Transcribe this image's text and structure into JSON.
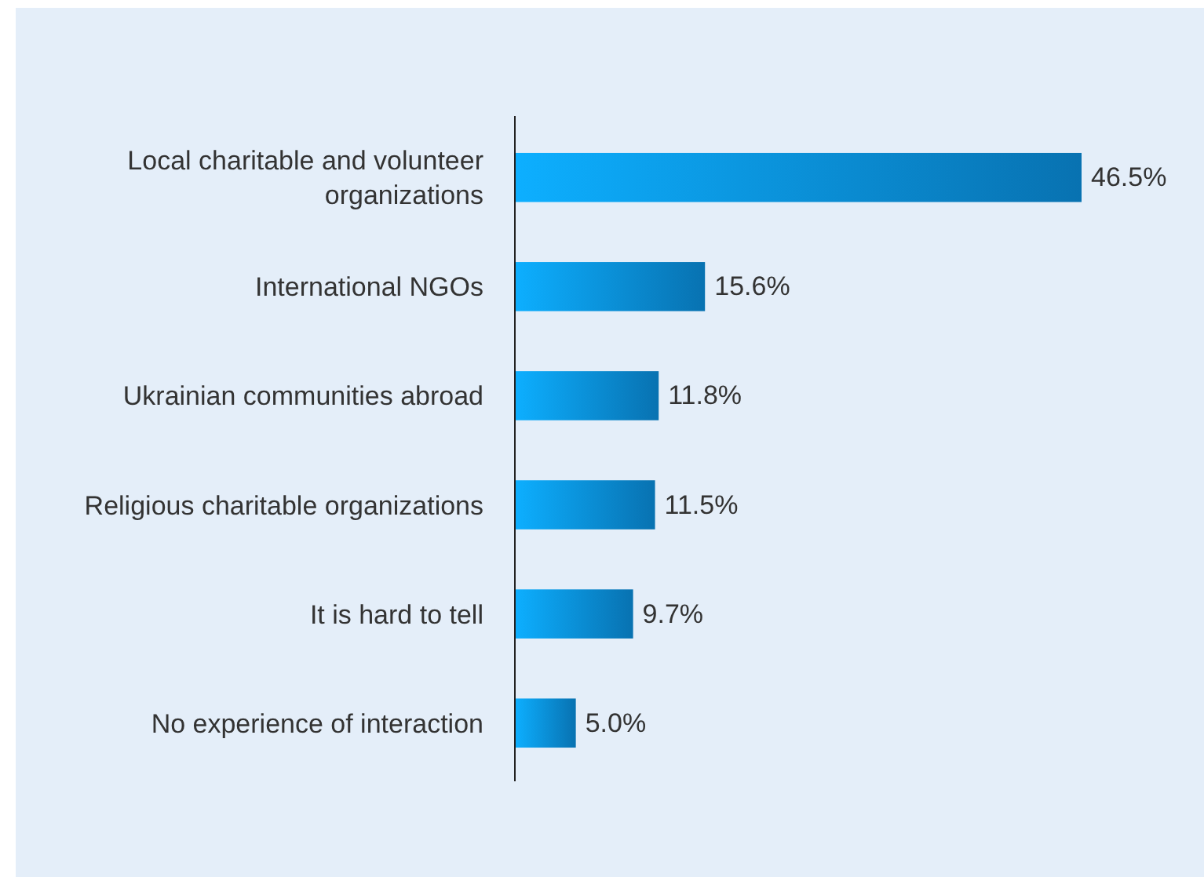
{
  "chart_data": {
    "type": "bar",
    "orientation": "horizontal",
    "data_labels": true,
    "categories": [
      "Local charitable and volunteer organizations",
      "International NGOs",
      "Ukrainian communities abroad",
      "Religious charitable organizations",
      "It is hard to tell",
      "No experience of interaction"
    ],
    "values": [
      46.5,
      15.6,
      11.8,
      11.5,
      9.7,
      5.0
    ],
    "value_labels": [
      "46.5%",
      "15.6%",
      "11.8%",
      "11.5%",
      "9.7%",
      "5.0%"
    ],
    "color": "#0a88d4"
  }
}
